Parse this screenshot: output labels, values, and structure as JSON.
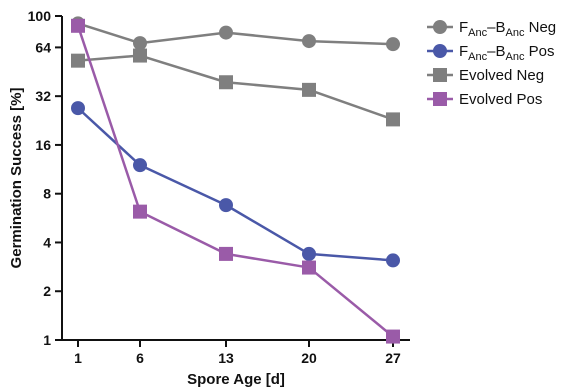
{
  "chart_data": {
    "type": "line",
    "xlabel": "Spore Age [d]",
    "ylabel": "Germination Success [%]",
    "x": [
      1,
      6,
      13,
      20,
      27
    ],
    "x_tick_labels": [
      "1",
      "6",
      "13",
      "20",
      "27"
    ],
    "y_scale": "log2",
    "ylim": [
      1,
      100
    ],
    "y_ticks": [
      1,
      2,
      4,
      8,
      16,
      32,
      64,
      100
    ],
    "y_tick_labels": [
      "1",
      "2",
      "4",
      "8",
      "16",
      "32",
      "64",
      "100"
    ],
    "grid": false,
    "legend_position": "top-right",
    "series": [
      {
        "name": "FAnc–BAnc Neg",
        "name_parts": {
          "a": "F",
          "a_sub": "Anc",
          "dash": "–",
          "b": "B",
          "b_sub": "Anc",
          "suffix": " Neg"
        },
        "color": "#7f7f7f",
        "marker": "circle",
        "values": [
          90,
          68,
          79,
          70,
          67
        ]
      },
      {
        "name": "FAnc–BAnc Pos",
        "name_parts": {
          "a": "F",
          "a_sub": "Anc",
          "dash": "–",
          "b": "B",
          "b_sub": "Anc",
          "suffix": " Pos"
        },
        "color": "#4a58a8",
        "marker": "circle",
        "values": [
          27,
          12,
          6.8,
          3.4,
          3.1
        ]
      },
      {
        "name": "Evolved Neg",
        "color": "#7f7f7f",
        "marker": "square",
        "values": [
          53,
          57,
          39,
          35,
          23
        ]
      },
      {
        "name": "Evolved Pos",
        "color": "#9a5ba8",
        "marker": "square",
        "values": [
          87,
          6.2,
          3.4,
          2.8,
          1.05
        ]
      }
    ]
  }
}
